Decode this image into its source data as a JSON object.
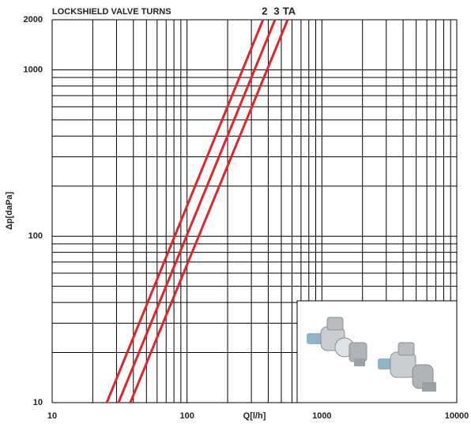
{
  "chart_data": {
    "type": "line",
    "title": "LOCKSHIELD VALVE TURNS",
    "x_label": "Q[l/h]",
    "y_label": "Δp[daPa]",
    "log_x": true,
    "log_y": true,
    "grid": true,
    "xlim": [
      10,
      10000
    ],
    "ylim": [
      10,
      2000
    ],
    "xticks": [
      10,
      100,
      1000,
      10000
    ],
    "yticks": [
      10,
      100,
      1000,
      2000
    ],
    "x_minor_ticks": [
      20,
      30,
      40,
      50,
      60,
      70,
      80,
      90,
      200,
      300,
      400,
      500,
      600,
      700,
      800,
      900,
      2000,
      3000,
      4000,
      5000,
      6000,
      7000,
      8000,
      9000
    ],
    "y_minor_ticks": [
      20,
      30,
      40,
      50,
      60,
      70,
      80,
      90,
      200,
      300,
      400,
      500,
      600,
      700,
      800,
      900
    ],
    "series": [
      {
        "name": "2",
        "color": "#e0262b",
        "x": [
          25.4,
          366
        ],
        "values": [
          10,
          2000
        ]
      },
      {
        "name": "3",
        "color": "#e0262b",
        "x": [
          31,
          449
        ],
        "values": [
          10,
          2000
        ]
      },
      {
        "name": "TA",
        "color": "#e0262b",
        "x": [
          38,
          557
        ],
        "values": [
          10,
          2000
        ]
      }
    ]
  }
}
